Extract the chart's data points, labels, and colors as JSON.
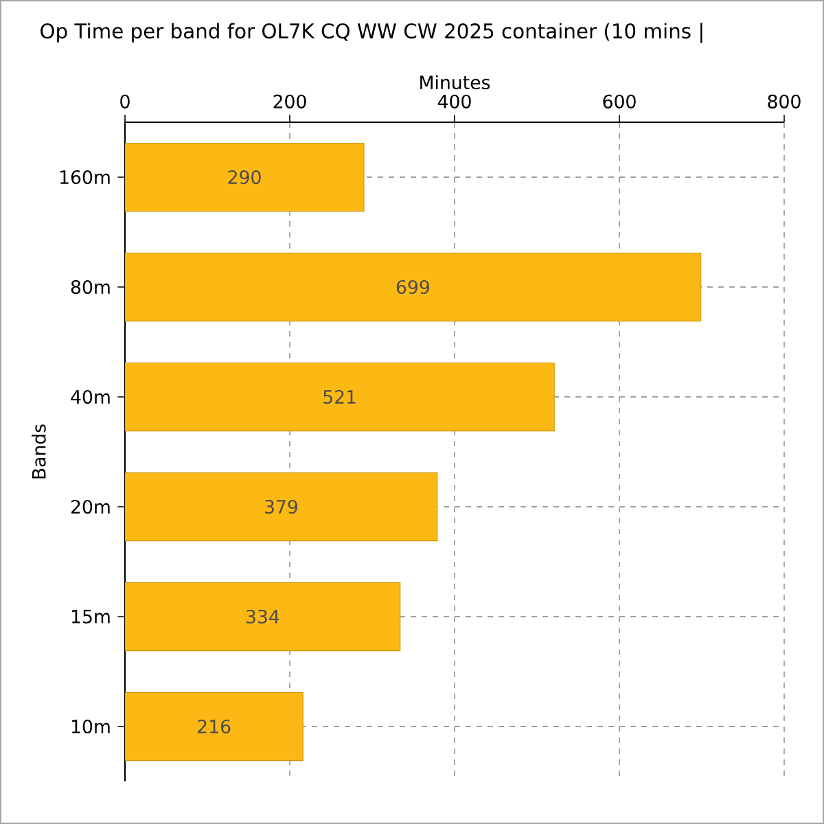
{
  "chart_data": {
    "type": "bar",
    "orientation": "horizontal",
    "title": "Op Time per band for OL7K CQ WW CW 2025 container (10 mins |",
    "xlabel": "Minutes",
    "ylabel": "Bands",
    "categories": [
      "160m",
      "80m",
      "40m",
      "20m",
      "15m",
      "10m"
    ],
    "values": [
      290,
      699,
      521,
      379,
      334,
      216
    ],
    "color": "#fdb913",
    "xlim": [
      0,
      800
    ],
    "xticks": [
      0,
      200,
      400,
      600,
      800
    ],
    "grid": true,
    "data_labels": true
  }
}
